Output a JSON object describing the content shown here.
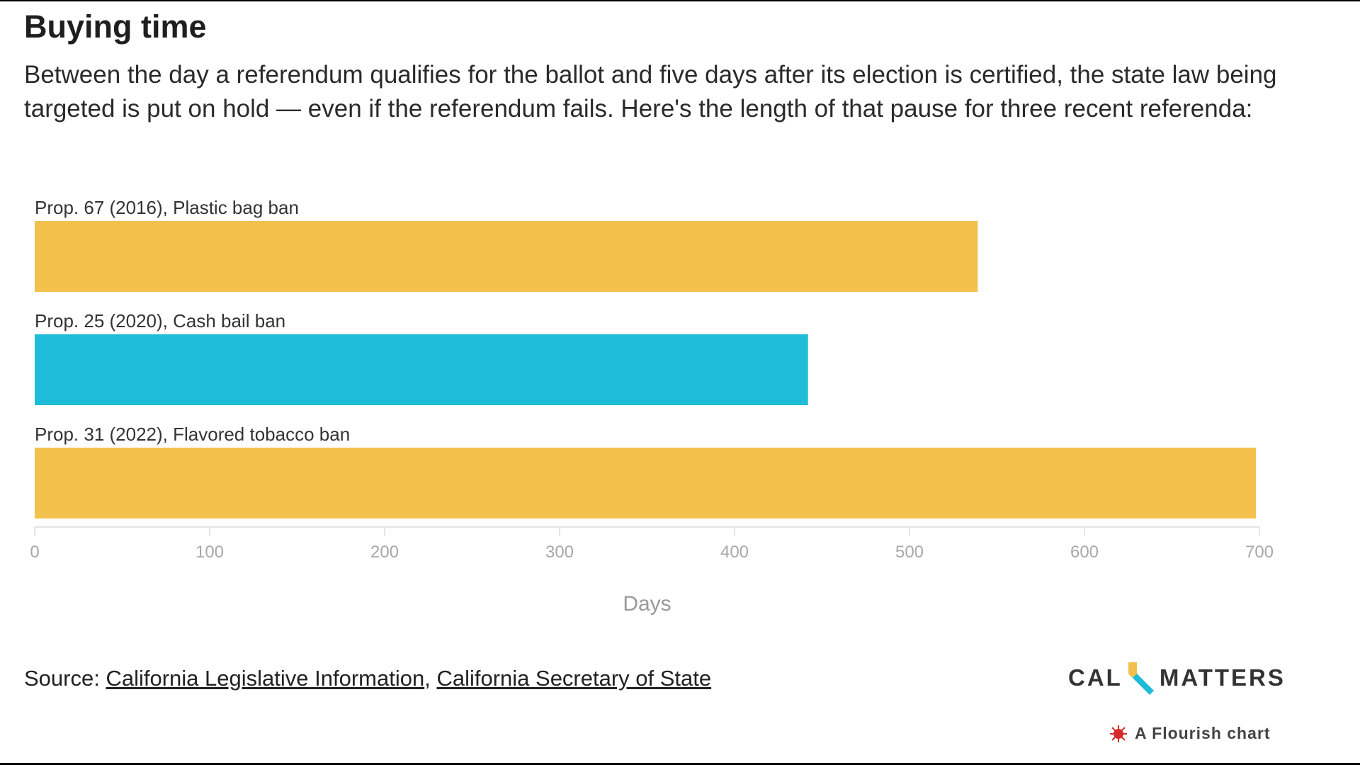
{
  "header": {
    "title": "Buying time",
    "subtitle": "Between the day a referendum qualifies for the ballot and five days after its election is certified, the state law being targeted is put on hold — even if the referendum fails. Here's the length of that pause for three recent referenda:"
  },
  "chart_data": {
    "type": "bar",
    "orientation": "horizontal",
    "categories": [
      "Prop. 67 (2016), Plastic bag ban",
      "Prop. 25 (2020), Cash bail ban",
      "Prop. 31 (2022), Flavored tobacco ban"
    ],
    "values": [
      539,
      442,
      698
    ],
    "colors": [
      "#f3c04b",
      "#1ebcd9",
      "#f3c04b"
    ],
    "xlabel": "Days",
    "xlim": [
      0,
      700
    ],
    "xticks": [
      0,
      100,
      200,
      300,
      400,
      500,
      600,
      700
    ],
    "grid": false,
    "legend": "none"
  },
  "footer": {
    "source_label": "Source:",
    "source_link_1": "California Legislative Information",
    "source_separator": ",",
    "source_link_2": "California Secretary of State",
    "logo_left": "CAL",
    "logo_right": "MATTERS",
    "credit": "A Flourish chart"
  }
}
